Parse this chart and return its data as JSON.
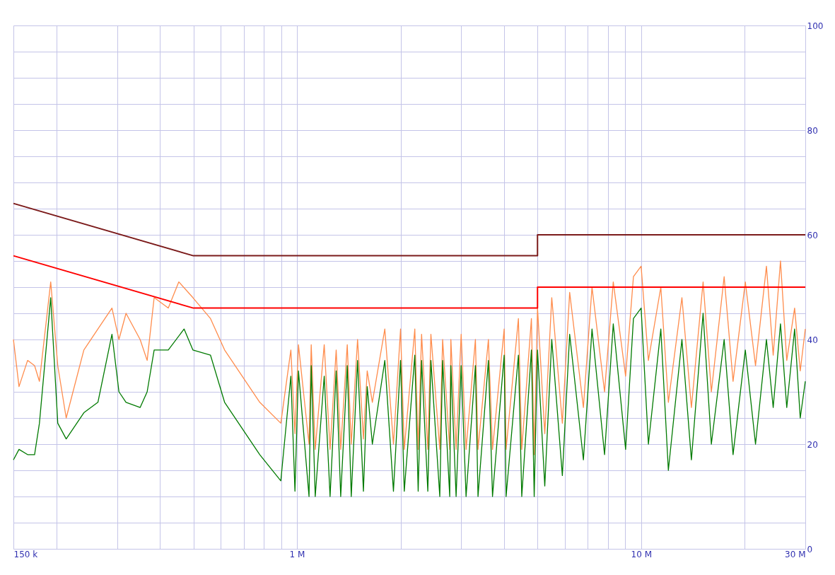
{
  "chart_data": {
    "type": "line",
    "xlim": [
      150000,
      30000000
    ],
    "xticks": [
      {
        "value": 150000,
        "label": "150 k"
      },
      {
        "value": 200000,
        "label": null
      },
      {
        "value": 300000,
        "label": null
      },
      {
        "value": 400000,
        "label": null
      },
      {
        "value": 500000,
        "label": null
      },
      {
        "value": 600000,
        "label": null
      },
      {
        "value": 700000,
        "label": null
      },
      {
        "value": 800000,
        "label": null
      },
      {
        "value": 900000,
        "label": null
      },
      {
        "value": 1000000,
        "label": "1 M"
      },
      {
        "value": 2000000,
        "label": null
      },
      {
        "value": 3000000,
        "label": null
      },
      {
        "value": 4000000,
        "label": null
      },
      {
        "value": 5000000,
        "label": null
      },
      {
        "value": 6000000,
        "label": null
      },
      {
        "value": 7000000,
        "label": null
      },
      {
        "value": 8000000,
        "label": null
      },
      {
        "value": 9000000,
        "label": null
      },
      {
        "value": 10000000,
        "label": "10 M"
      },
      {
        "value": 20000000,
        "label": null
      },
      {
        "value": 30000000,
        "label": "30 M"
      }
    ],
    "ylim": [
      0,
      100
    ],
    "yticks": [
      0,
      {
        "value": 5,
        "label": null
      },
      {
        "value": 10,
        "label": null
      },
      {
        "value": 15,
        "label": null
      },
      20,
      {
        "value": 25,
        "label": null
      },
      {
        "value": 30,
        "label": null
      },
      {
        "value": 35,
        "label": null
      },
      40,
      {
        "value": 45,
        "label": null
      },
      {
        "value": 50,
        "label": null
      },
      {
        "value": 55,
        "label": null
      },
      60,
      {
        "value": 65,
        "label": null
      },
      {
        "value": 70,
        "label": null
      },
      {
        "value": 75,
        "label": null
      },
      80,
      {
        "value": 85,
        "label": null
      },
      {
        "value": 90,
        "label": null
      },
      {
        "value": 95,
        "label": null
      },
      100
    ],
    "log": "x",
    "grid": true,
    "marker": "none",
    "line_style": "solid",
    "series": [
      {
        "color": "#ff8c4c",
        "x": [
          150000,
          155700,
          164900,
          172800,
          178500,
          192500,
          201800,
          213500,
          240300,
          264000,
          290000,
          303900,
          318600,
          350100,
          367000,
          384600,
          422700,
          453600,
          498300,
          560700,
          616200,
          676800,
          779600,
          897600,
          960000,
          986600,
          1010000,
          1084000,
          1100000,
          1130000,
          1200000,
          1248000,
          1300000,
          1340000,
          1400000,
          1438000,
          1500000,
          1560000,
          1600000,
          1656000,
          1800000,
          1907000,
          2000000,
          2050000,
          2200000,
          2250000,
          2302000,
          2400000,
          2450000,
          2600000,
          2650000,
          2779000,
          2800000,
          2900000,
          3000000,
          3100000,
          3300000,
          3358000,
          3600000,
          3700000,
          4000000,
          4052000,
          4400000,
          4500000,
          4800000,
          4890000,
          5000000,
          5249000,
          5500000,
          5904000,
          6200000,
          6797000,
          7200000,
          7830000,
          8300000,
          9015000,
          9500000,
          10000000,
          10500000,
          11410000,
          12000000,
          13140000,
          14000000,
          15140000,
          16000000,
          17430000,
          18500000,
          20080000,
          21500000,
          23130000,
          24200000,
          25410000,
          26500000,
          27930000,
          29000000,
          30000000
        ],
        "values": [
          40,
          31,
          36,
          35,
          32,
          51,
          35,
          25,
          38,
          42,
          46,
          40,
          45,
          40,
          36,
          48,
          46,
          51,
          48,
          44,
          38,
          34,
          28,
          24,
          38,
          22,
          39,
          20,
          39,
          19,
          39,
          19,
          38,
          19,
          39,
          20,
          40,
          21,
          34,
          28,
          42,
          20,
          42,
          19,
          42,
          19,
          41,
          19,
          41,
          19,
          40,
          19,
          40,
          19,
          41,
          19,
          40,
          19,
          40,
          19,
          42,
          19,
          44,
          19,
          44,
          18,
          46,
          22,
          48,
          24,
          49,
          27,
          50,
          30,
          51,
          33,
          52,
          54,
          36,
          50,
          28,
          48,
          27,
          51,
          30,
          52,
          32,
          51,
          35,
          54,
          37,
          55,
          36,
          46,
          34,
          42
        ]
      },
      {
        "color": "#007a00",
        "x": [
          150000,
          155700,
          164900,
          172800,
          178500,
          192500,
          201800,
          213500,
          240300,
          264000,
          290000,
          303900,
          318600,
          350100,
          367000,
          384600,
          422700,
          470000,
          498300,
          560700,
          616200,
          676800,
          779600,
          897600,
          960000,
          986600,
          1010000,
          1084000,
          1100000,
          1130000,
          1200000,
          1248000,
          1300000,
          1340000,
          1400000,
          1438000,
          1500000,
          1560000,
          1600000,
          1656000,
          1800000,
          1907000,
          2000000,
          2050000,
          2200000,
          2250000,
          2302000,
          2400000,
          2450000,
          2600000,
          2650000,
          2779000,
          2800000,
          2900000,
          3000000,
          3100000,
          3300000,
          3358000,
          3600000,
          3700000,
          4000000,
          4052000,
          4400000,
          4500000,
          4800000,
          4890000,
          5000000,
          5249000,
          5500000,
          5904000,
          6200000,
          6797000,
          7200000,
          7830000,
          8300000,
          9015000,
          9500000,
          10000000,
          10500000,
          11410000,
          12000000,
          13140000,
          14000000,
          15140000,
          16000000,
          17430000,
          18500000,
          20080000,
          21500000,
          23130000,
          24200000,
          25410000,
          26500000,
          27930000,
          29000000,
          30000000
        ],
        "values": [
          17,
          19,
          18,
          18,
          24,
          48,
          24,
          21,
          26,
          28,
          41,
          30,
          28,
          27,
          30,
          38,
          38,
          42,
          38,
          37,
          28,
          24,
          18,
          13,
          33,
          11,
          34,
          10,
          35,
          10,
          33,
          10,
          34,
          10,
          35,
          10,
          36,
          11,
          31,
          20,
          36,
          11,
          36,
          11,
          37,
          11,
          36,
          11,
          36,
          10,
          36,
          10,
          35,
          10,
          35,
          10,
          35,
          10,
          36,
          10,
          37,
          10,
          37,
          10,
          38,
          10,
          38,
          12,
          40,
          14,
          41,
          17,
          42,
          18,
          43,
          19,
          44,
          46,
          20,
          42,
          15,
          40,
          17,
          45,
          20,
          40,
          18,
          38,
          20,
          40,
          27,
          43,
          27,
          42,
          25,
          32
        ]
      },
      {
        "color": "#7b1a1a",
        "x": [
          150000,
          500000,
          5000000,
          5000000,
          30000000
        ],
        "values": [
          66,
          56,
          56,
          60,
          60
        ]
      },
      {
        "color": "#ff0000",
        "x": [
          150000,
          500000,
          5000000,
          5000000,
          30000000
        ],
        "values": [
          56,
          46,
          46,
          50,
          50
        ]
      }
    ]
  }
}
